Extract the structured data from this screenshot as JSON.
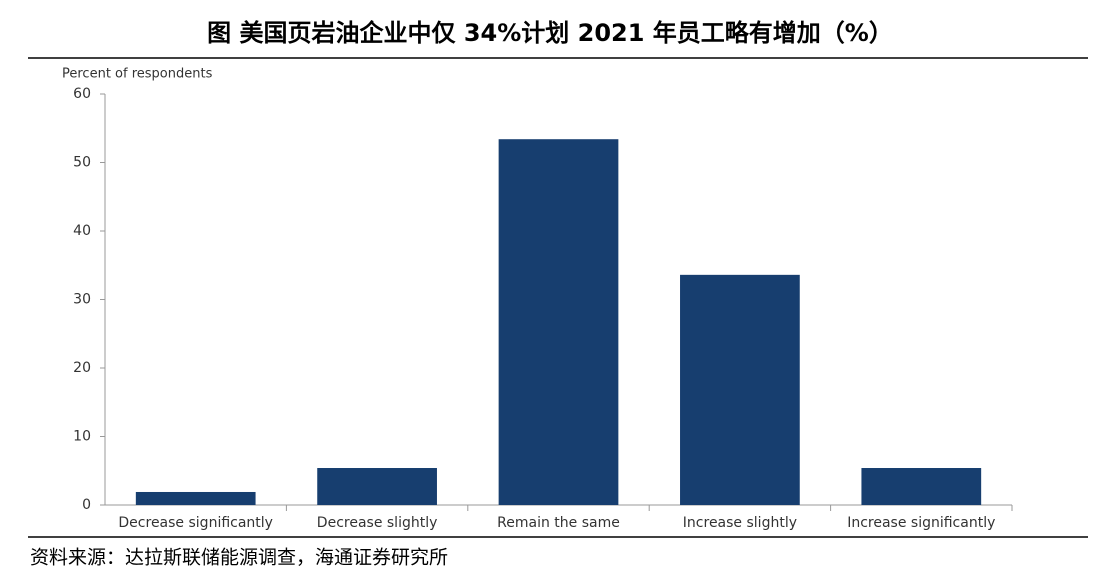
{
  "chart_data": {
    "type": "bar",
    "title": "图  美国页岩油企业中仅 34%计划 2021 年员工略有增加（%）",
    "y_label": "Percent of respondents",
    "categories": [
      "Decrease significantly",
      "Decrease slightly",
      "Remain the same",
      "Increase slightly",
      "Increase significantly"
    ],
    "values": [
      1.9,
      5.4,
      53.4,
      33.6,
      5.4
    ],
    "color": "#173e6f",
    "ylim": [
      0,
      60
    ],
    "yticks": [
      0,
      10,
      20,
      30,
      40,
      50,
      60
    ],
    "grid": false,
    "source": "资料来源：达拉斯联储能源调查，海通证券研究所"
  }
}
